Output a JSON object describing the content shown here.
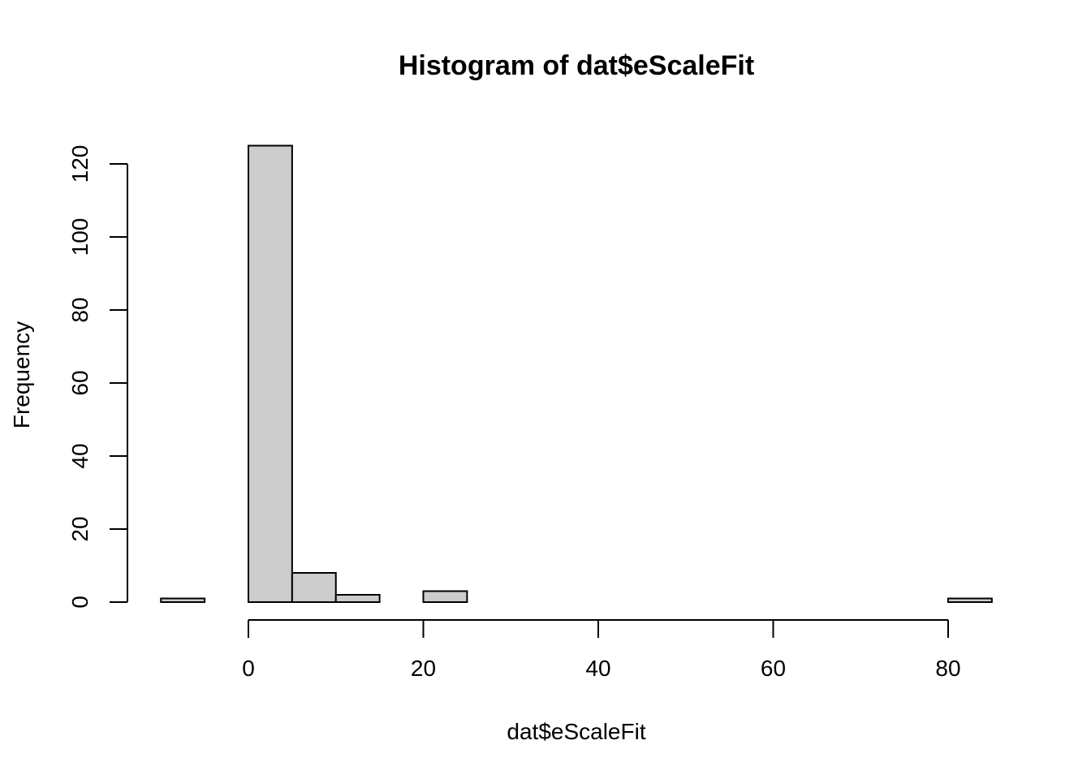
{
  "chart_data": {
    "type": "bar",
    "subtype": "histogram",
    "title": "Histogram of dat$eScaleFit",
    "xlabel": "dat$eScaleFit",
    "ylabel": "Frequency",
    "bin_edges": [
      -10,
      -5,
      0,
      5,
      10,
      15,
      20,
      25,
      30,
      35,
      40,
      45,
      50,
      55,
      60,
      65,
      70,
      75,
      80,
      85
    ],
    "values": [
      1,
      0,
      125,
      8,
      2,
      0,
      3,
      0,
      0,
      0,
      0,
      0,
      0,
      0,
      0,
      0,
      0,
      0,
      1
    ],
    "x_ticks": [
      0,
      20,
      40,
      60,
      80
    ],
    "y_ticks": [
      0,
      20,
      40,
      60,
      80,
      100,
      120
    ],
    "xlim": [
      -10,
      85
    ],
    "ylim": [
      0,
      125
    ],
    "grid": false,
    "bar_fill": "#cccccc",
    "bar_stroke": "#000000"
  }
}
